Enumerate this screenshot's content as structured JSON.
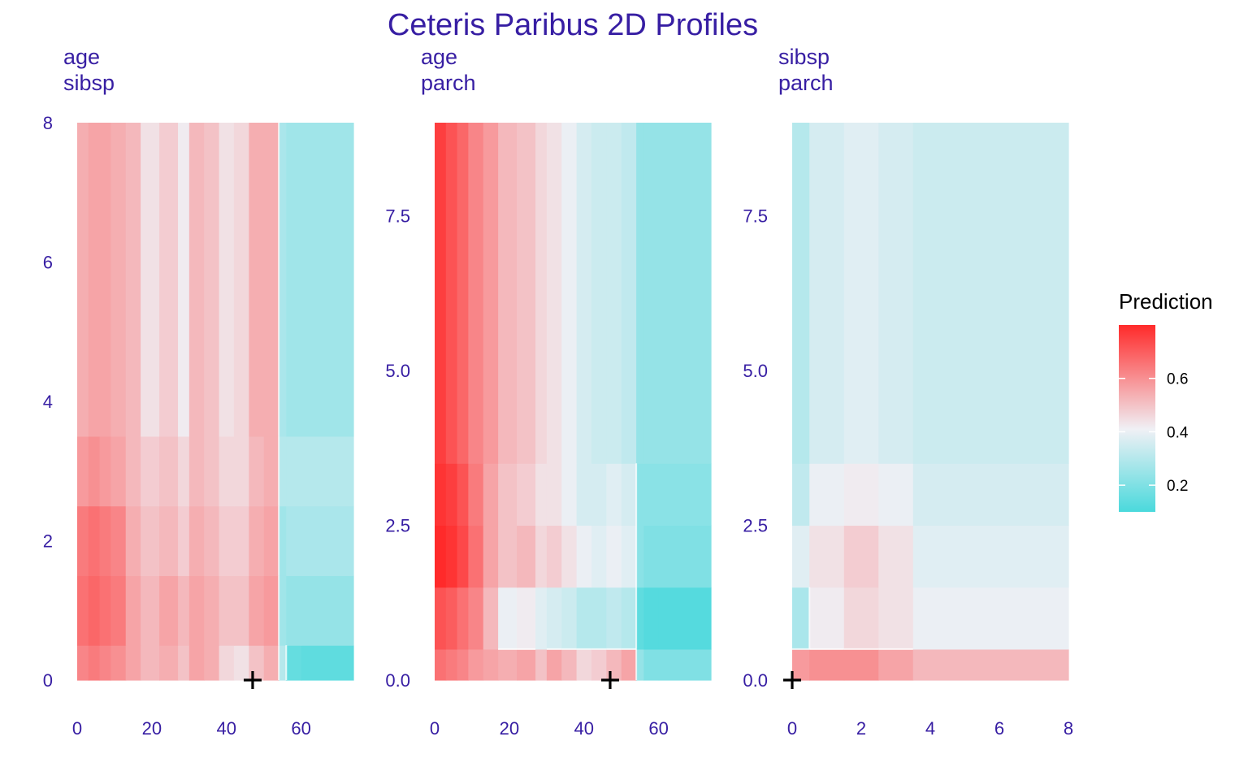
{
  "title": "Ceteris Paribus 2D Profiles",
  "legend": {
    "title": "Prediction",
    "ticks": [
      0.2,
      0.4,
      0.6
    ],
    "min": 0.1,
    "max": 0.8,
    "colors": {
      "low": "#4ad9dc",
      "mid": "#f0f0f5",
      "high": "#ff2a2a"
    }
  },
  "chart_data": [
    {
      "type": "heatmap",
      "panel_title": [
        "age",
        "sibsp"
      ],
      "x": "age",
      "y": "sibsp",
      "xlim": [
        0,
        74
      ],
      "ylim": [
        0,
        8
      ],
      "xticks": [
        "0",
        "20",
        "40",
        "60"
      ],
      "xtick_values": [
        0,
        20,
        40,
        60
      ],
      "yticks": [
        "0",
        "2",
        "4",
        "6",
        "8"
      ],
      "ytick_values": [
        0,
        2,
        4,
        6,
        8
      ],
      "observation": {
        "x": 47,
        "y": 0
      },
      "x_breaks": [
        0,
        3,
        6,
        9,
        13,
        17,
        22,
        27,
        30,
        34,
        38,
        42,
        46,
        50,
        54,
        56,
        60,
        74
      ],
      "y_breaks": [
        0,
        0.5,
        1.5,
        2.5,
        3.5,
        8
      ],
      "values": [
        [
          0.62,
          0.64,
          0.62,
          0.6,
          0.56,
          0.52,
          0.54,
          0.5,
          0.56,
          0.54,
          0.46,
          0.44,
          0.5,
          0.54,
          0.3,
          0.15,
          0.14
        ],
        [
          0.66,
          0.68,
          0.66,
          0.64,
          0.56,
          0.52,
          0.56,
          0.52,
          0.56,
          0.54,
          0.5,
          0.5,
          0.56,
          0.58,
          0.26,
          0.24,
          0.24
        ],
        [
          0.64,
          0.66,
          0.64,
          0.62,
          0.54,
          0.5,
          0.52,
          0.48,
          0.54,
          0.52,
          0.48,
          0.48,
          0.54,
          0.56,
          0.26,
          0.28,
          0.28
        ],
        [
          0.58,
          0.6,
          0.58,
          0.56,
          0.52,
          0.48,
          0.5,
          0.46,
          0.52,
          0.5,
          0.46,
          0.46,
          0.52,
          0.54,
          0.3,
          0.3,
          0.3
        ],
        [
          0.54,
          0.56,
          0.56,
          0.54,
          0.52,
          0.44,
          0.48,
          0.42,
          0.52,
          0.5,
          0.44,
          0.46,
          0.54,
          0.54,
          0.28,
          0.26,
          0.26
        ]
      ]
    },
    {
      "type": "heatmap",
      "panel_title": [
        "age",
        "parch"
      ],
      "x": "age",
      "y": "parch",
      "xlim": [
        0,
        74
      ],
      "ylim": [
        0,
        9
      ],
      "xticks": [
        "0",
        "20",
        "40",
        "60"
      ],
      "xtick_values": [
        0,
        20,
        40,
        60
      ],
      "yticks": [
        "0.0",
        "2.5",
        "5.0",
        "7.5"
      ],
      "ytick_values": [
        0,
        2.5,
        5,
        7.5
      ],
      "observation": {
        "x": 47,
        "y": 0
      },
      "x_breaks": [
        0,
        3,
        6,
        9,
        13,
        17,
        22,
        27,
        30,
        34,
        38,
        42,
        46,
        50,
        54,
        56,
        60,
        74
      ],
      "y_breaks": [
        0,
        0.5,
        1.5,
        2.5,
        3.5,
        9
      ],
      "values": [
        [
          0.66,
          0.64,
          0.62,
          0.58,
          0.56,
          0.54,
          0.56,
          0.5,
          0.56,
          0.52,
          0.46,
          0.48,
          0.52,
          0.56,
          0.24,
          0.2,
          0.2
        ],
        [
          0.72,
          0.7,
          0.66,
          0.62,
          0.52,
          0.4,
          0.42,
          0.38,
          0.36,
          0.34,
          0.3,
          0.3,
          0.32,
          0.3,
          0.14,
          0.12,
          0.12
        ],
        [
          0.8,
          0.78,
          0.74,
          0.66,
          0.56,
          0.5,
          0.52,
          0.46,
          0.48,
          0.44,
          0.4,
          0.38,
          0.4,
          0.38,
          0.22,
          0.2,
          0.2
        ],
        [
          0.78,
          0.76,
          0.72,
          0.64,
          0.56,
          0.5,
          0.48,
          0.44,
          0.44,
          0.4,
          0.36,
          0.36,
          0.38,
          0.36,
          0.22,
          0.22,
          0.22
        ],
        [
          0.76,
          0.72,
          0.68,
          0.62,
          0.58,
          0.52,
          0.5,
          0.46,
          0.44,
          0.4,
          0.36,
          0.34,
          0.34,
          0.32,
          0.24,
          0.24,
          0.24
        ]
      ]
    },
    {
      "type": "heatmap",
      "panel_title": [
        "sibsp",
        "parch"
      ],
      "x": "sibsp",
      "y": "parch",
      "xlim": [
        0,
        8
      ],
      "ylim": [
        0,
        9
      ],
      "xticks": [
        "0",
        "2",
        "4",
        "6",
        "8"
      ],
      "xtick_values": [
        0,
        2,
        4,
        6,
        8
      ],
      "yticks": [
        "0.0",
        "2.5",
        "5.0",
        "7.5"
      ],
      "ytick_values": [
        0,
        2.5,
        5,
        7.5
      ],
      "observation": {
        "x": 0,
        "y": 0
      },
      "x_breaks": [
        0,
        0.5,
        1.5,
        2.5,
        3.5,
        8
      ],
      "y_breaks": [
        0,
        0.5,
        1.5,
        2.5,
        3.5,
        9
      ],
      "values": [
        [
          0.58,
          0.6,
          0.6,
          0.56,
          0.52
        ],
        [
          0.28,
          0.42,
          0.46,
          0.44,
          0.4
        ],
        [
          0.38,
          0.44,
          0.48,
          0.44,
          0.38
        ],
        [
          0.32,
          0.4,
          0.42,
          0.4,
          0.36
        ],
        [
          0.3,
          0.36,
          0.38,
          0.36,
          0.34
        ]
      ]
    }
  ]
}
